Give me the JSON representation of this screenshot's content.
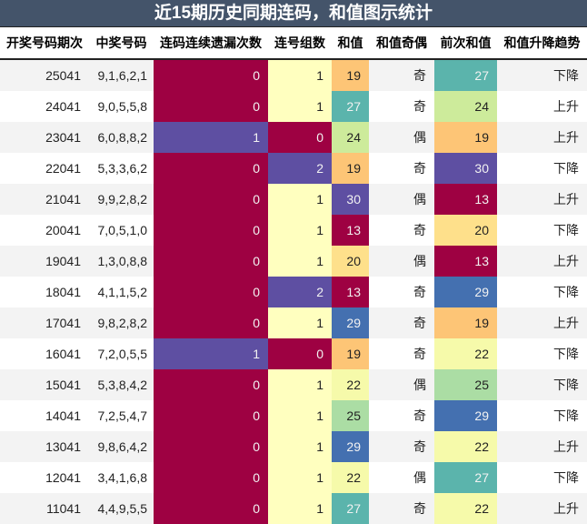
{
  "title": "近15期历史同期连码，和值图示统计",
  "headers": [
    "开奖号码期次",
    "中奖号码",
    "连码连续遗漏次数",
    "连号组数",
    "和值",
    "和值奇偶",
    "前次和值",
    "和值升降趋势"
  ],
  "colors": {
    "title_bg": "#44546a",
    "val_0_missing": "#9e0142",
    "val_1_missing": "#5e4fa2",
    "group_1": "#ffffbf",
    "group_0": "#9e0142",
    "group_2": "#5e4fa2",
    "sum_13": "#9e0142",
    "sum_19": "#fdc576",
    "sum_20": "#fee08b",
    "sum_22": "#f6faaa",
    "sum_24": "#cdeb9b",
    "sum_25": "#abdda4",
    "sum_27": "#5bb4ac",
    "sum_29": "#4470b0",
    "sum_30": "#5e4fa2"
  },
  "chart_data": {
    "type": "table",
    "title": "近15期历史同期连码，和值图示统计",
    "columns": [
      "开奖号码期次",
      "中奖号码",
      "连码连续遗漏次数",
      "连号组数",
      "和值",
      "和值奇偶",
      "前次和值",
      "和值升降趋势"
    ],
    "rows": [
      [
        "25041",
        "9,1,6,2,1",
        0,
        1,
        19,
        "奇",
        27,
        "下降"
      ],
      [
        "24041",
        "9,0,5,5,8",
        0,
        1,
        27,
        "奇",
        24,
        "上升"
      ],
      [
        "23041",
        "6,0,8,8,2",
        1,
        0,
        24,
        "偶",
        19,
        "上升"
      ],
      [
        "22041",
        "5,3,3,6,2",
        0,
        2,
        19,
        "奇",
        30,
        "下降"
      ],
      [
        "21041",
        "9,9,2,8,2",
        0,
        1,
        30,
        "偶",
        13,
        "上升"
      ],
      [
        "20041",
        "7,0,5,1,0",
        0,
        1,
        13,
        "奇",
        20,
        "下降"
      ],
      [
        "19041",
        "1,3,0,8,8",
        0,
        1,
        20,
        "偶",
        13,
        "上升"
      ],
      [
        "18041",
        "4,1,1,5,2",
        0,
        2,
        13,
        "奇",
        29,
        "下降"
      ],
      [
        "17041",
        "9,8,2,8,2",
        0,
        1,
        29,
        "奇",
        19,
        "上升"
      ],
      [
        "16041",
        "7,2,0,5,5",
        1,
        0,
        19,
        "奇",
        22,
        "下降"
      ],
      [
        "15041",
        "5,3,8,4,2",
        0,
        1,
        22,
        "偶",
        25,
        "下降"
      ],
      [
        "14041",
        "7,2,5,4,7",
        0,
        1,
        25,
        "奇",
        29,
        "下降"
      ],
      [
        "13041",
        "9,8,6,4,2",
        0,
        1,
        29,
        "奇",
        22,
        "上升"
      ],
      [
        "12041",
        "3,4,1,6,8",
        0,
        1,
        22,
        "偶",
        27,
        "下降"
      ],
      [
        "11041",
        "4,4,9,5,5",
        0,
        1,
        27,
        "奇",
        22,
        "上升"
      ]
    ]
  }
}
